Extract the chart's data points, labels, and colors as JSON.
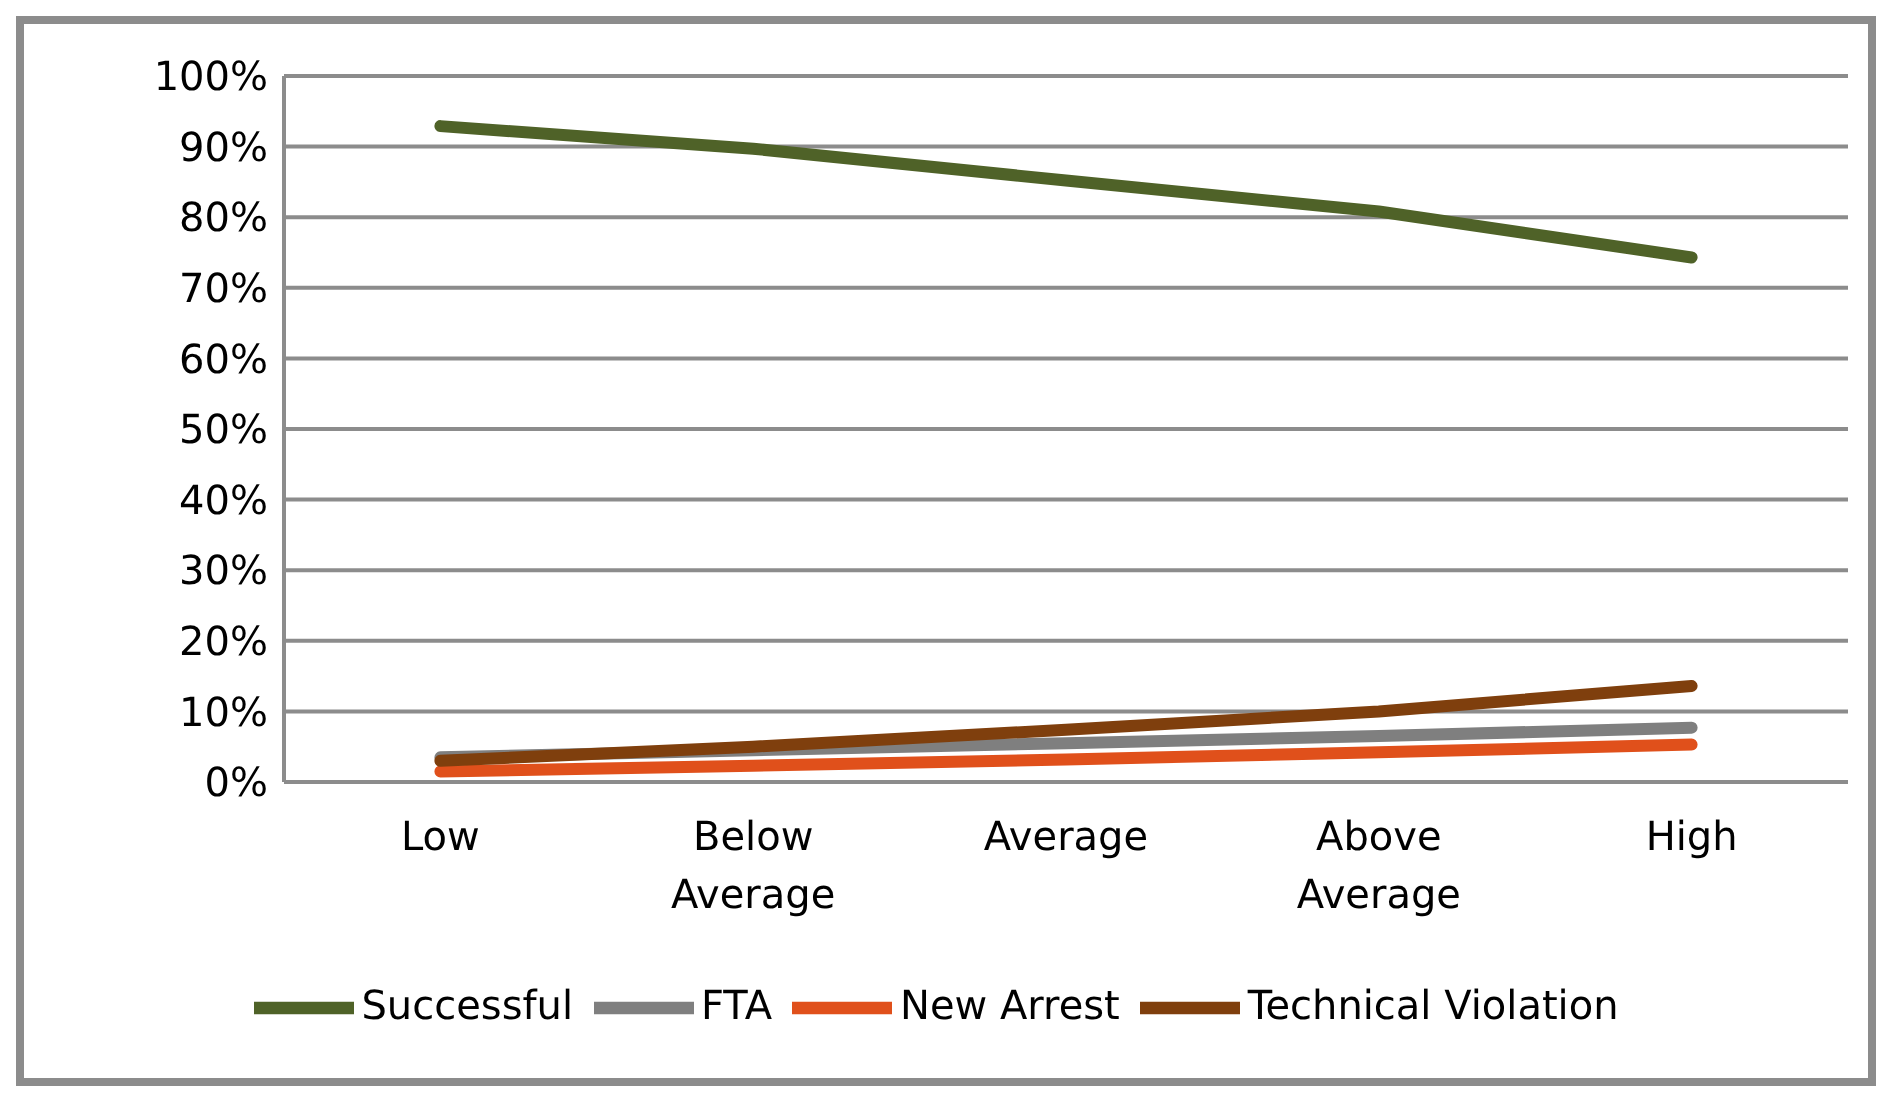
{
  "chart_data": {
    "type": "line",
    "categories": [
      "Low",
      "Below Average",
      "Average",
      "Above Average",
      "High"
    ],
    "series": [
      {
        "name": "Successful",
        "color": "#4f6228",
        "values": [
          92.9,
          89.7,
          85.2,
          80.8,
          74.3
        ]
      },
      {
        "name": "FTA",
        "color": "#7f7f7f",
        "values": [
          3.5,
          4.5,
          5.5,
          6.5,
          7.7
        ]
      },
      {
        "name": "New Arrest",
        "color": "#e0501b",
        "values": [
          1.5,
          2.3,
          3.2,
          4.2,
          5.3
        ]
      },
      {
        "name": "Technical Violation",
        "color": "#7f3f0d",
        "values": [
          3,
          5,
          7.4,
          10,
          13.6
        ]
      }
    ],
    "ylim": [
      0,
      100
    ],
    "yticks": [
      {
        "value": 0,
        "label": "0%"
      },
      {
        "value": 10,
        "label": "10%"
      },
      {
        "value": 20,
        "label": "20%"
      },
      {
        "value": 30,
        "label": "30%"
      },
      {
        "value": 40,
        "label": "40%"
      },
      {
        "value": 50,
        "label": "50%"
      },
      {
        "value": 60,
        "label": "60%"
      },
      {
        "value": 70,
        "label": "70%"
      },
      {
        "value": 80,
        "label": "80%"
      },
      {
        "value": 90,
        "label": "90%"
      },
      {
        "value": 100,
        "label": "100%"
      }
    ],
    "grid": "y",
    "legend": "bottom",
    "marker": "none",
    "line_style": "solid"
  }
}
